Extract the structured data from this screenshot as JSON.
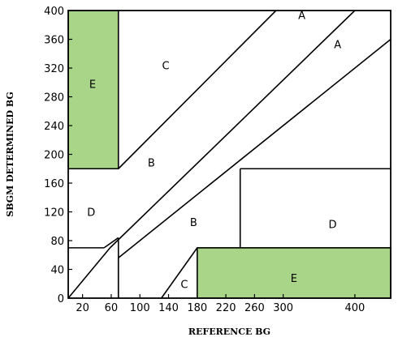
{
  "chart_data": {
    "type": "diagram",
    "title": "",
    "xlabel": "REFERENCE BG",
    "ylabel": "SBGM DETERMINED BG",
    "xlim": [
      0,
      450
    ],
    "ylim": [
      0,
      400
    ],
    "x_ticks": [
      20,
      60,
      100,
      140,
      180,
      220,
      260,
      300,
      400
    ],
    "y_ticks": [
      0,
      40,
      80,
      120,
      160,
      200,
      240,
      280,
      320,
      360,
      400
    ],
    "shaded_color": "#a8d587",
    "shaded_regions": [
      {
        "zone": "E",
        "x": [
          0,
          70
        ],
        "y": [
          180,
          400
        ]
      },
      {
        "zone": "E",
        "x": [
          180,
          450
        ],
        "y": [
          0,
          70
        ]
      }
    ],
    "boundary_lines": [
      {
        "points": [
          [
            0,
            180
          ],
          [
            70,
            180
          ]
        ]
      },
      {
        "points": [
          [
            70,
            180
          ],
          [
            70,
            400
          ]
        ]
      },
      {
        "points": [
          [
            70,
            180
          ],
          [
            290,
            400
          ]
        ]
      },
      {
        "points": [
          [
            0,
            70
          ],
          [
            50,
            70
          ]
        ]
      },
      {
        "points": [
          [
            50,
            70
          ],
          [
            70,
            84
          ]
        ]
      },
      {
        "points": [
          [
            70,
            0
          ],
          [
            70,
            84
          ]
        ]
      },
      {
        "points": [
          [
            0,
            0
          ],
          [
            58.33,
            70
          ]
        ]
      },
      {
        "points": [
          [
            58.33,
            70
          ],
          [
            400,
            400
          ]
        ]
      },
      {
        "points": [
          [
            70,
            56
          ],
          [
            450,
            360
          ]
        ]
      },
      {
        "points": [
          [
            70,
            0
          ],
          [
            70,
            56
          ]
        ]
      },
      {
        "points": [
          [
            130,
            0
          ],
          [
            180,
            70
          ]
        ]
      },
      {
        "points": [
          [
            180,
            0
          ],
          [
            180,
            70
          ]
        ]
      },
      {
        "points": [
          [
            180,
            70
          ],
          [
            450,
            70
          ]
        ]
      },
      {
        "points": [
          [
            240,
            70
          ],
          [
            240,
            180
          ]
        ]
      },
      {
        "points": [
          [
            240,
            180
          ],
          [
            450,
            180
          ]
        ]
      }
    ],
    "zone_labels": [
      {
        "text": "E",
        "x": 34,
        "y": 298
      },
      {
        "text": "C",
        "x": 136,
        "y": 324
      },
      {
        "text": "A",
        "x": 326,
        "y": 394
      },
      {
        "text": "A",
        "x": 376,
        "y": 353
      },
      {
        "text": "B",
        "x": 116,
        "y": 189
      },
      {
        "text": "D",
        "x": 32,
        "y": 120
      },
      {
        "text": "B",
        "x": 175,
        "y": 106
      },
      {
        "text": "D",
        "x": 369,
        "y": 103
      },
      {
        "text": "C",
        "x": 162,
        "y": 20
      },
      {
        "text": "E",
        "x": 315,
        "y": 28
      }
    ]
  }
}
